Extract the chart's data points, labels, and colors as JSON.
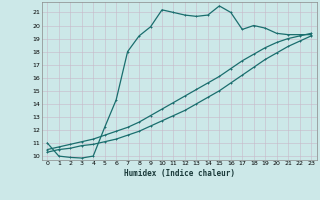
{
  "xlabel": "Humidex (Indice chaleur)",
  "bg_color": "#cce8e8",
  "grid_color": "#b8d8d8",
  "line_color": "#1a6e6e",
  "xlim": [
    -0.5,
    23.5
  ],
  "ylim": [
    9.7,
    21.8
  ],
  "yticks": [
    10,
    11,
    12,
    13,
    14,
    15,
    16,
    17,
    18,
    19,
    20,
    21
  ],
  "xticks": [
    0,
    1,
    2,
    3,
    4,
    5,
    6,
    7,
    8,
    9,
    10,
    11,
    12,
    13,
    14,
    15,
    16,
    17,
    18,
    19,
    20,
    21,
    22,
    23
  ],
  "curve1_x": [
    0,
    1,
    2,
    3,
    4,
    5,
    6,
    7,
    8,
    9,
    10,
    11,
    12,
    13,
    14,
    15,
    16,
    17,
    18,
    19,
    20,
    21,
    22,
    23
  ],
  "curve1_y": [
    11.0,
    10.0,
    9.9,
    9.85,
    10.0,
    12.2,
    14.3,
    18.0,
    19.2,
    19.9,
    21.2,
    21.0,
    20.8,
    20.7,
    20.8,
    21.5,
    21.0,
    19.7,
    20.0,
    19.8,
    19.4,
    19.3,
    19.3,
    19.3
  ],
  "curve2_x": [
    0,
    1,
    2,
    3,
    4,
    5,
    6,
    7,
    8,
    9,
    10,
    11,
    12,
    13,
    14,
    15,
    16,
    17,
    18,
    19,
    20,
    21,
    22,
    23
  ],
  "curve2_y": [
    10.5,
    10.7,
    10.9,
    11.1,
    11.3,
    11.6,
    11.9,
    12.2,
    12.6,
    13.1,
    13.6,
    14.1,
    14.6,
    15.1,
    15.6,
    16.1,
    16.7,
    17.3,
    17.8,
    18.3,
    18.7,
    19.0,
    19.2,
    19.4
  ],
  "curve3_x": [
    0,
    1,
    2,
    3,
    4,
    5,
    6,
    7,
    8,
    9,
    10,
    11,
    12,
    13,
    14,
    15,
    16,
    17,
    18,
    19,
    20,
    21,
    22,
    23
  ],
  "curve3_y": [
    10.3,
    10.5,
    10.6,
    10.8,
    10.9,
    11.1,
    11.3,
    11.6,
    11.9,
    12.3,
    12.7,
    13.1,
    13.5,
    14.0,
    14.5,
    15.0,
    15.6,
    16.2,
    16.8,
    17.4,
    17.9,
    18.4,
    18.8,
    19.2
  ]
}
